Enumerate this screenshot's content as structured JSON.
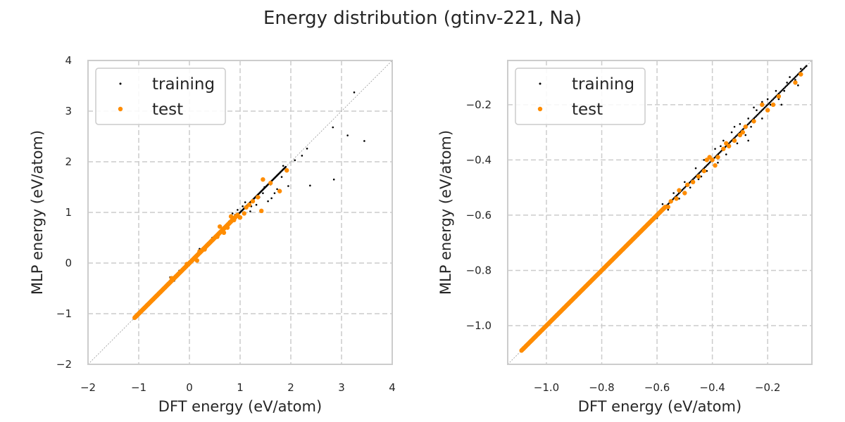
{
  "figure": {
    "title": "Energy distribution (gtinv-221, Na)"
  },
  "colors": {
    "training": "#000000",
    "test": "#ff8c00",
    "grid": "#cccccc",
    "spine": "#cccccc",
    "diagonal": "#999999"
  },
  "chart_data": [
    {
      "type": "scatter",
      "title": "",
      "xlabel": "DFT energy (eV/atom)",
      "ylabel": "MLP energy (eV/atom)",
      "xlim": [
        -2,
        4
      ],
      "ylim": [
        -2,
        4
      ],
      "x_ticks": [
        -2,
        -1,
        0,
        1,
        2,
        3,
        4
      ],
      "y_ticks": [
        -2,
        -1,
        0,
        1,
        2,
        3,
        4
      ],
      "x_tick_labels": [
        "−2",
        "−1",
        "0",
        "1",
        "2",
        "3",
        "4"
      ],
      "y_tick_labels": [
        "−2",
        "−1",
        "0",
        "1",
        "2",
        "3",
        "4"
      ],
      "grid": true,
      "diagonal": true,
      "legend_position": "top-left",
      "series": [
        {
          "name": "training",
          "main_range": [
            -1.1,
            1.9
          ],
          "points": [
            [
              3.25,
              3.37
            ],
            [
              2.83,
              2.68
            ],
            [
              3.12,
              2.52
            ],
            [
              3.45,
              2.41
            ],
            [
              2.85,
              1.65
            ],
            [
              2.38,
              1.53
            ],
            [
              2.32,
              2.26
            ],
            [
              2.22,
              2.12
            ],
            [
              2.08,
              2.03
            ],
            [
              1.85,
              1.92
            ],
            [
              1.92,
              1.81
            ],
            [
              1.95,
              1.52
            ],
            [
              1.73,
              1.46
            ],
            [
              1.68,
              1.38
            ],
            [
              1.62,
              1.28
            ],
            [
              1.55,
              1.22
            ],
            [
              1.45,
              1.38
            ],
            [
              1.38,
              1.3
            ],
            [
              1.32,
              1.15
            ],
            [
              1.22,
              1.12
            ],
            [
              1.2,
              1.02
            ],
            [
              1.05,
              1.12
            ],
            [
              0.98,
              0.88
            ],
            [
              0.9,
              0.95
            ],
            [
              0.85,
              0.98
            ],
            [
              0.78,
              0.82
            ],
            [
              0.72,
              0.7
            ],
            [
              0.65,
              0.62
            ],
            [
              0.55,
              0.58
            ],
            [
              0.45,
              0.5
            ],
            [
              0.35,
              0.33
            ],
            [
              0.2,
              0.28
            ],
            [
              0.12,
              0.15
            ],
            [
              0.05,
              0.08
            ],
            [
              -0.1,
              -0.12
            ],
            [
              -0.2,
              -0.15
            ],
            [
              -0.3,
              -0.35
            ],
            [
              -0.38,
              -0.28
            ],
            [
              1.82,
              1.7
            ],
            [
              1.6,
              1.55
            ],
            [
              1.48,
              1.5
            ],
            [
              1.1,
              1.2
            ],
            [
              0.95,
              1.05
            ]
          ]
        },
        {
          "name": "test",
          "main_range": [
            -1.08,
            0.95
          ],
          "points": [
            [
              1.92,
              1.83
            ],
            [
              1.78,
              1.42
            ],
            [
              1.42,
              1.03
            ],
            [
              1.45,
              1.65
            ],
            [
              1.6,
              1.58
            ],
            [
              1.35,
              1.3
            ],
            [
              1.18,
              1.15
            ],
            [
              1.08,
              0.98
            ],
            [
              1.0,
              0.9
            ],
            [
              0.88,
              0.85
            ],
            [
              0.82,
              0.92
            ],
            [
              0.75,
              0.7
            ],
            [
              0.68,
              0.6
            ],
            [
              0.6,
              0.72
            ],
            [
              0.55,
              0.52
            ],
            [
              0.3,
              0.27
            ],
            [
              0.15,
              0.05
            ],
            [
              0.2,
              0.23
            ],
            [
              -0.05,
              -0.02
            ],
            [
              -0.35,
              -0.3
            ],
            [
              1.25,
              1.22
            ],
            [
              1.12,
              1.1
            ]
          ]
        }
      ]
    },
    {
      "type": "scatter",
      "title": "",
      "xlabel": "DFT energy (eV/atom)",
      "ylabel": "MLP energy (eV/atom)",
      "xlim": [
        -1.14,
        -0.04
      ],
      "ylim": [
        -1.14,
        -0.04
      ],
      "x_ticks": [
        -1.0,
        -0.8,
        -0.6,
        -0.4,
        -0.2
      ],
      "y_ticks": [
        -1.0,
        -0.8,
        -0.6,
        -0.4,
        -0.2
      ],
      "x_tick_labels": [
        "−1.0",
        "−0.8",
        "−0.6",
        "−0.4",
        "−0.2"
      ],
      "y_tick_labels": [
        "−1.0",
        "−0.8",
        "−0.6",
        "−0.4",
        "−0.2"
      ],
      "grid": true,
      "diagonal": true,
      "legend_position": "top-left",
      "series": [
        {
          "name": "training",
          "main_range": [
            -1.09,
            -0.06
          ],
          "points": [
            [
              -0.06,
              -0.06
            ],
            [
              -0.08,
              -0.07
            ],
            [
              -0.1,
              -0.11
            ],
            [
              -0.12,
              -0.1
            ],
            [
              -0.14,
              -0.15
            ],
            [
              -0.13,
              -0.12
            ],
            [
              -0.16,
              -0.18
            ],
            [
              -0.17,
              -0.15
            ],
            [
              -0.19,
              -0.2
            ],
            [
              -0.2,
              -0.18
            ],
            [
              -0.22,
              -0.25
            ],
            [
              -0.24,
              -0.22
            ],
            [
              -0.26,
              -0.28
            ],
            [
              -0.27,
              -0.25
            ],
            [
              -0.28,
              -0.31
            ],
            [
              -0.3,
              -0.27
            ],
            [
              -0.31,
              -0.34
            ],
            [
              -0.33,
              -0.3
            ],
            [
              -0.35,
              -0.38
            ],
            [
              -0.36,
              -0.33
            ],
            [
              -0.38,
              -0.41
            ],
            [
              -0.39,
              -0.36
            ],
            [
              -0.42,
              -0.44
            ],
            [
              -0.43,
              -0.4
            ],
            [
              -0.45,
              -0.47
            ],
            [
              -0.46,
              -0.43
            ],
            [
              -0.48,
              -0.5
            ],
            [
              -0.5,
              -0.48
            ],
            [
              -0.52,
              -0.54
            ],
            [
              -0.54,
              -0.52
            ],
            [
              -0.56,
              -0.58
            ],
            [
              -0.58,
              -0.56
            ],
            [
              -0.6,
              -0.61
            ],
            [
              -0.27,
              -0.33
            ],
            [
              -0.32,
              -0.28
            ],
            [
              -0.22,
              -0.19
            ],
            [
              -0.15,
              -0.2
            ],
            [
              -0.09,
              -0.13
            ],
            [
              -0.25,
              -0.21
            ],
            [
              -0.37,
              -0.35
            ],
            [
              -0.44,
              -0.46
            ]
          ]
        },
        {
          "name": "test",
          "main_range": [
            -1.09,
            -0.57
          ],
          "points": [
            [
              -0.08,
              -0.09
            ],
            [
              -0.1,
              -0.12
            ],
            [
              -0.16,
              -0.17
            ],
            [
              -0.18,
              -0.2
            ],
            [
              -0.2,
              -0.22
            ],
            [
              -0.22,
              -0.2
            ],
            [
              -0.25,
              -0.26
            ],
            [
              -0.28,
              -0.28
            ],
            [
              -0.3,
              -0.31
            ],
            [
              -0.32,
              -0.33
            ],
            [
              -0.34,
              -0.35
            ],
            [
              -0.36,
              -0.36
            ],
            [
              -0.38,
              -0.39
            ],
            [
              -0.4,
              -0.4
            ],
            [
              -0.41,
              -0.39
            ],
            [
              -0.39,
              -0.42
            ],
            [
              -0.43,
              -0.44
            ],
            [
              -0.45,
              -0.46
            ],
            [
              -0.47,
              -0.48
            ],
            [
              -0.49,
              -0.49
            ],
            [
              -0.5,
              -0.52
            ],
            [
              -0.52,
              -0.51
            ],
            [
              -0.53,
              -0.54
            ],
            [
              -0.55,
              -0.55
            ],
            [
              -0.56,
              -0.57
            ],
            [
              -0.35,
              -0.34
            ],
            [
              -0.29,
              -0.3
            ],
            [
              -0.42,
              -0.4
            ]
          ]
        }
      ]
    }
  ]
}
